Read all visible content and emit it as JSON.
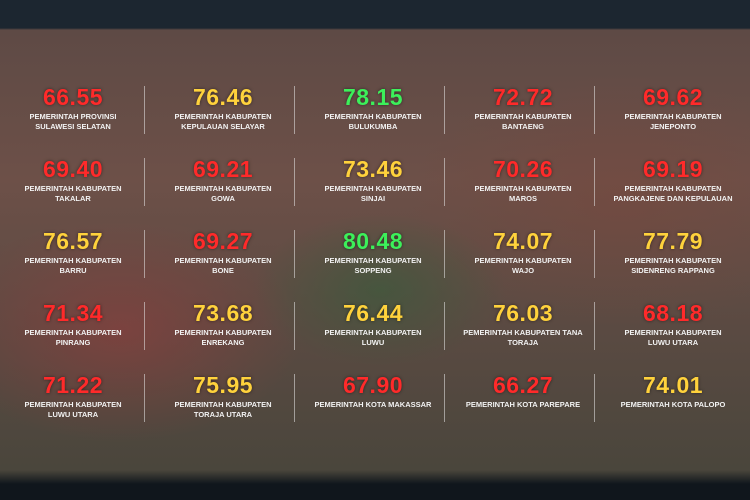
{
  "grid": {
    "cells": [
      [
        {
          "value": "66.55",
          "label": "PEMERINTAH PROVINSI SULAWESI SELATAN",
          "color": "#ff2a2a"
        },
        {
          "value": "76.46",
          "label": "PEMERINTAH KABUPATEN KEPULAUAN SELAYAR",
          "color": "#ffd23c"
        },
        {
          "value": "78.15",
          "label": "PEMERINTAH KABUPATEN BULUKUMBA",
          "color": "#3cf05a"
        },
        {
          "value": "72.72",
          "label": "PEMERINTAH KABUPATEN BANTAENG",
          "color": "#ff2a2a"
        },
        {
          "value": "69.62",
          "label": "PEMERINTAH KABUPATEN JENEPONTO",
          "color": "#ff2a2a"
        }
      ],
      [
        {
          "value": "69.40",
          "label": "PEMERINTAH KABUPATEN TAKALAR",
          "color": "#ff2a2a"
        },
        {
          "value": "69.21",
          "label": "PEMERINTAH KABUPATEN GOWA",
          "color": "#ff2a2a"
        },
        {
          "value": "73.46",
          "label": "PEMERINTAH KABUPATEN SINJAI",
          "color": "#ffd23c"
        },
        {
          "value": "70.26",
          "label": "PEMERINTAH KABUPATEN MAROS",
          "color": "#ff2a2a"
        },
        {
          "value": "69.19",
          "label": "PEMERINTAH KABUPATEN PANGKAJENE DAN KEPULAUAN",
          "color": "#ff2a2a"
        }
      ],
      [
        {
          "value": "76.57",
          "label": "PEMERINTAH KABUPATEN BARRU",
          "color": "#ffd23c"
        },
        {
          "value": "69.27",
          "label": "PEMERINTAH KABUPATEN BONE",
          "color": "#ff2a2a"
        },
        {
          "value": "80.48",
          "label": "PEMERINTAH KABUPATEN SOPPENG",
          "color": "#3cf05a"
        },
        {
          "value": "74.07",
          "label": "PEMERINTAH KABUPATEN WAJO",
          "color": "#ffd23c"
        },
        {
          "value": "77.79",
          "label": "PEMERINTAH KABUPATEN SIDENRENG RAPPANG",
          "color": "#ffd23c"
        }
      ],
      [
        {
          "value": "71.34",
          "label": "PEMERINTAH KABUPATEN PINRANG",
          "color": "#ff2a2a"
        },
        {
          "value": "73.68",
          "label": "PEMERINTAH KABUPATEN ENREKANG",
          "color": "#ffd23c"
        },
        {
          "value": "76.44",
          "label": "PEMERINTAH KABUPATEN LUWU",
          "color": "#ffd23c"
        },
        {
          "value": "76.03",
          "label": "PEMERINTAH KABUPATEN TANA TORAJA",
          "color": "#ffd23c"
        },
        {
          "value": "68.18",
          "label": "PEMERINTAH KABUPATEN LUWU UTARA",
          "color": "#ff2a2a"
        }
      ],
      [
        {
          "value": "71.22",
          "label": "PEMERINTAH KABUPATEN LUWU UTARA",
          "color": "#ff2a2a"
        },
        {
          "value": "75.95",
          "label": "PEMERINTAH KABUPATEN TORAJA UTARA",
          "color": "#ffd23c"
        },
        {
          "value": "67.90",
          "label": "PEMERINTAH KOTA MAKASSAR",
          "color": "#ff2a2a"
        },
        {
          "value": "66.27",
          "label": "PEMERINTAH KOTA PAREPARE",
          "color": "#ff2a2a"
        },
        {
          "value": "74.01",
          "label": "PEMERINTAH KOTA PALOPO",
          "color": "#ffd23c"
        }
      ]
    ]
  }
}
